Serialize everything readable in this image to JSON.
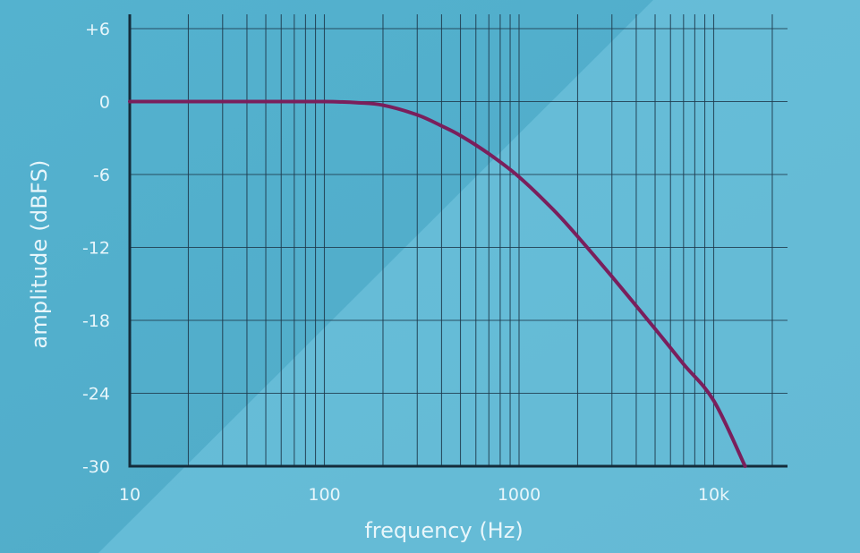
{
  "chart_data": {
    "type": "line",
    "xlabel": "frequency (Hz)",
    "ylabel": "amplitude (dBFS)",
    "x_scale": "log",
    "xlim": [
      10,
      25000
    ],
    "ylim": [
      -30,
      6
    ],
    "x_ticks": [
      {
        "value": 10,
        "label": "10"
      },
      {
        "value": 100,
        "label": "100"
      },
      {
        "value": 1000,
        "label": "1000"
      },
      {
        "value": 10000,
        "label": "10k"
      }
    ],
    "y_ticks": [
      {
        "value": 6,
        "label": "+6"
      },
      {
        "value": 0,
        "label": "0"
      },
      {
        "value": -6,
        "label": "-6"
      },
      {
        "value": -12,
        "label": "-12"
      },
      {
        "value": -18,
        "label": "-18"
      },
      {
        "value": -24,
        "label": "-24"
      },
      {
        "value": -30,
        "label": "-30"
      }
    ],
    "grid": true,
    "series": [
      {
        "color": "#7a1f5c",
        "x": [
          10,
          20,
          50,
          100,
          150,
          200,
          300,
          400,
          500,
          700,
          1000,
          1500,
          2000,
          3000,
          5000,
          7000,
          10000,
          14500
        ],
        "y": [
          0,
          0,
          0,
          0,
          -0.1,
          -0.3,
          -1.1,
          -2.0,
          -2.8,
          -4.3,
          -6.2,
          -8.9,
          -11.1,
          -14.4,
          -18.7,
          -21.6,
          -24.6,
          -30
        ]
      }
    ]
  },
  "colors": {
    "background": "#5db8d3",
    "grid": "#1f3b4e",
    "axis": "#142c3b",
    "text": "#e8f6fb"
  }
}
